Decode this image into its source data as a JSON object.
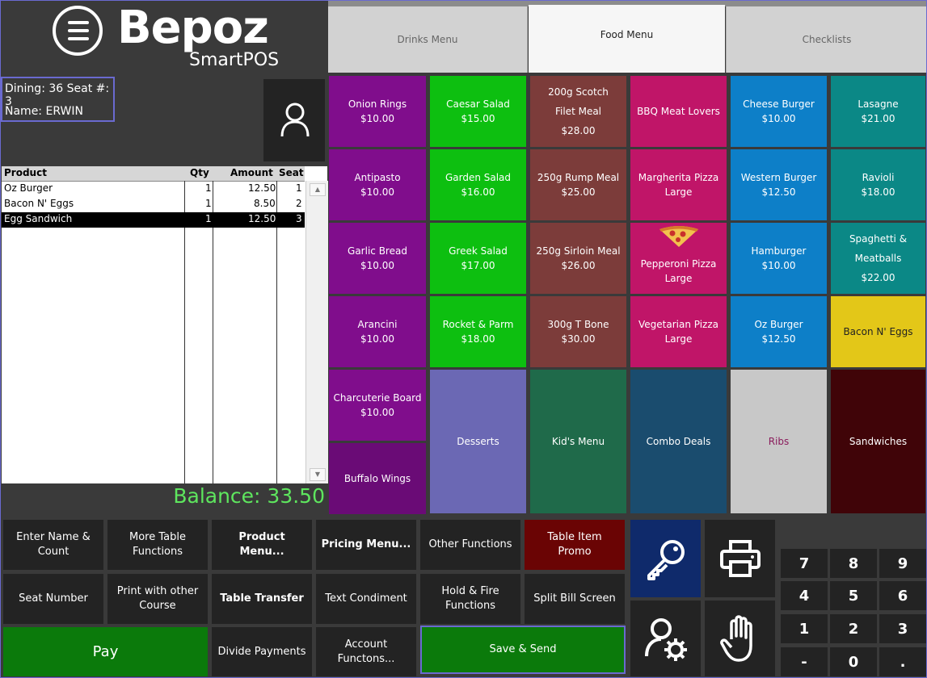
{
  "logo": {
    "name": "Bepoz",
    "sub": "SmartPOS"
  },
  "table_info": {
    "dining": "Dining: 36  Seat #: 3",
    "name": "Name: ERWIN"
  },
  "order": {
    "headers": {
      "product": "Product",
      "qty": "Qty",
      "amount": "Amount",
      "seat": "Seat"
    },
    "rows": [
      {
        "product": "Oz Burger",
        "qty": "1",
        "amount": "12.50",
        "seat": "1"
      },
      {
        "product": "Bacon N' Eggs",
        "qty": "1",
        "amount": "8.50",
        "seat": "2"
      },
      {
        "product": "Egg Sandwich",
        "qty": "1",
        "amount": "12.50",
        "seat": "3"
      }
    ],
    "balance": "Balance: 33.50"
  },
  "tabs": [
    {
      "label": "Drinks Menu",
      "active": false
    },
    {
      "label": "Food Menu",
      "active": true
    },
    {
      "label": "Checklists",
      "active": false
    }
  ],
  "menu": {
    "c1": [
      {
        "name": "Onion Rings",
        "price": "$10.00"
      },
      {
        "name": "Antipasto",
        "price": "$10.00"
      },
      {
        "name": "Garlic Bread",
        "price": "$10.00"
      },
      {
        "name": "Arancini",
        "price": "$10.00"
      },
      {
        "name": "Charcuterie Board",
        "price": "$10.00"
      },
      {
        "name": "Buffalo Wings",
        "price": ""
      }
    ],
    "c2": [
      {
        "name": "Caesar Salad",
        "price": "$15.00"
      },
      {
        "name": "Garden Salad",
        "price": "$16.00"
      },
      {
        "name": "Greek Salad",
        "price": "$17.00"
      },
      {
        "name": "Rocket & Parm",
        "price": "$18.00"
      }
    ],
    "c3": [
      {
        "name": "200g Scotch Filet Meal",
        "price": "$28.00"
      },
      {
        "name": "250g Rump Meal",
        "price": "$25.00"
      },
      {
        "name": "250g Sirloin Meal",
        "price": "$26.00"
      },
      {
        "name": "300g T Bone",
        "price": "$30.00"
      }
    ],
    "c4": [
      {
        "name": "BBQ Meat Lovers",
        "price": ""
      },
      {
        "name": "Margherita Pizza",
        "price": "Large"
      },
      {
        "name": "Pepperoni Pizza",
        "price": "Large"
      },
      {
        "name": "Vegetarian Pizza",
        "price": "Large"
      }
    ],
    "c5": [
      {
        "name": "Cheese Burger",
        "price": "$10.00"
      },
      {
        "name": "Western Burger",
        "price": "$12.50"
      },
      {
        "name": "Hamburger",
        "price": "$10.00"
      },
      {
        "name": "Oz Burger",
        "price": "$12.50"
      }
    ],
    "c6": [
      {
        "name": "Lasagne",
        "price": "$21.00"
      },
      {
        "name": "Ravioli",
        "price": "$18.00"
      },
      {
        "name": "Spaghetti & Meatballs",
        "price": "$22.00"
      },
      {
        "name": "Bacon N' Eggs",
        "price": ""
      }
    ],
    "categories": [
      "Desserts",
      "Kid's Menu",
      "Combo Deals",
      "Ribs",
      "Sandwiches"
    ]
  },
  "functions": {
    "enter_name": "Enter Name & Count",
    "more_table": "More Table Functions",
    "product_menu": "Product Menu...",
    "pricing_menu": "Pricing Menu...",
    "other_functions": "Other Functions",
    "table_item_promo": "Table Item Promo",
    "seat_number": "Seat Number",
    "print_other": "Print with other Course",
    "table_transfer": "Table Transfer",
    "text_condiment": "Text Condiment",
    "hold_fire": "Hold & Fire Functions",
    "split_bill": "Split Bill Screen",
    "pay": "Pay",
    "divide_payments": "Divide Payments",
    "account_functions": "Account Functons...",
    "save_send": "Save & Send"
  },
  "keypad": [
    "7",
    "8",
    "9",
    "4",
    "5",
    "6",
    "1",
    "2",
    "3",
    "-",
    "0",
    "."
  ],
  "icons": [
    "key-icon",
    "printer-icon",
    "user-settings-icon",
    "hand-stop-icon",
    "user-icon",
    "pizza-icon"
  ]
}
